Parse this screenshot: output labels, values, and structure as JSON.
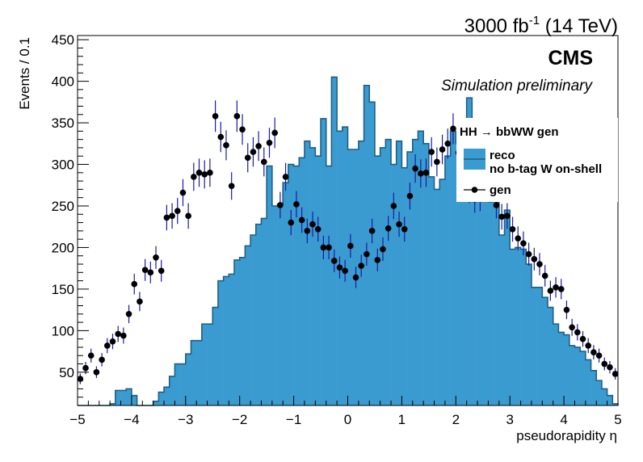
{
  "header": {
    "lumi_prefix": "3000 fb",
    "lumi_exp": "-1",
    "lumi_suffix": " (14 TeV)"
  },
  "labels": {
    "cms": "CMS",
    "subtitle": "Simulation preliminary"
  },
  "legend": {
    "header": "HH → bbWW gen",
    "reco_line1": "reco",
    "reco_line2": "no b-tag W on-shell",
    "gen": "gen"
  },
  "colors": {
    "reco_fill": "#3a9bd0",
    "reco_line": "#1f5f86",
    "gen_marker": "#000000",
    "gen_error": "#1a1aa6"
  },
  "chart_data": {
    "type": "bar",
    "xlabel": "pseudorapidity η",
    "ylabel": "Events / 0.1",
    "xlim": [
      -5,
      5
    ],
    "ylim": [
      10,
      455
    ],
    "x_ticks": [
      -5,
      -4,
      -3,
      -2,
      -1,
      0,
      1,
      2,
      3,
      4,
      5
    ],
    "x_tick_labels": [
      "−5",
      "−4",
      "−3",
      "−2",
      "−1",
      "0",
      "1",
      "2",
      "3",
      "4",
      "5"
    ],
    "y_ticks": [
      50,
      100,
      150,
      200,
      250,
      300,
      350,
      400,
      450
    ],
    "y_tick_labels": [
      "50",
      "100",
      "150",
      "200",
      "250",
      "300",
      "350",
      "400",
      "450"
    ],
    "legend_position": "top-right",
    "series": [
      {
        "name": "reco no b-tag W on-shell",
        "kind": "histogram",
        "bin_width": 0.1,
        "x_start": -5,
        "values": [
          10,
          10,
          10,
          10,
          10,
          10,
          12,
          28,
          28,
          30,
          22,
          10,
          10,
          10,
          15,
          26,
          32,
          45,
          60,
          60,
          72,
          88,
          88,
          108,
          108,
          128,
          160,
          165,
          168,
          185,
          188,
          202,
          215,
          228,
          235,
          298,
          250,
          252,
          278,
          300,
          298,
          308,
          328,
          320,
          310,
          355,
          298,
          405,
          340,
          345,
          318,
          318,
          328,
          395,
          375,
          310,
          320,
          330,
          300,
          328,
          296,
          315,
          330,
          340,
          325,
          285,
          270,
          282,
          310,
          340,
          325,
          325,
          380,
          270,
          298,
          308,
          255,
          258,
          215,
          245,
          198,
          200,
          198,
          180,
          152,
          152,
          140,
          128,
          108,
          98,
          95,
          82,
          80,
          75,
          65,
          52,
          40,
          30,
          22,
          12
        ]
      },
      {
        "name": "gen",
        "kind": "points",
        "x_start": -4.95,
        "bin_width": 0.1,
        "values": [
          42,
          55,
          70,
          50,
          65,
          82,
          87,
          96,
          94,
          120,
          156,
          135,
          173,
          170,
          188,
          172,
          236,
          238,
          244,
          266,
          238,
          285,
          290,
          288,
          290,
          358,
          333,
          323,
          274,
          358,
          342,
          308,
          315,
          322,
          303,
          326,
          338,
          251,
          285,
          230,
          252,
          233,
          220,
          228,
          222,
          200,
          200,
          184,
          176,
          172,
          202,
          164,
          178,
          192,
          220,
          185,
          198,
          223,
          250,
          228,
          222,
          262,
          295,
          289,
          290,
          315,
          303,
          318,
          325,
          343,
          314,
          283,
          270,
          258,
          260,
          279,
          278,
          251,
          237,
          238,
          222,
          211,
          205,
          192,
          186,
          180,
          166,
          148,
          152,
          150,
          125,
          104,
          98,
          90,
          82,
          74,
          70,
          60,
          56,
          48
        ]
      }
    ]
  }
}
